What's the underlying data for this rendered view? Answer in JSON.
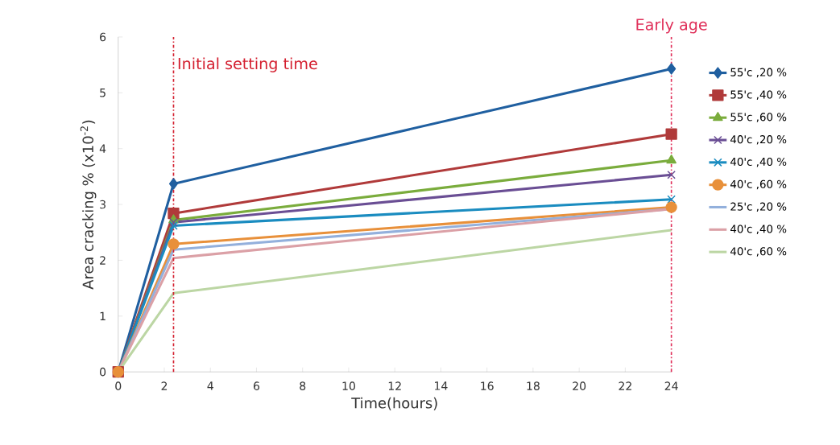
{
  "chart_data": {
    "type": "line",
    "xlabel": "Time(hours)",
    "ylabel": "Area cracking  % (x10$^{-2}$)",
    "xlim": [
      0,
      24
    ],
    "ylim": [
      0,
      6
    ],
    "xticks": [
      0,
      2,
      4,
      6,
      8,
      10,
      12,
      14,
      16,
      18,
      20,
      22,
      24
    ],
    "yticks": [
      0,
      1,
      2,
      3,
      4,
      5,
      6
    ],
    "x": [
      0,
      2.4,
      24
    ],
    "legend": "right",
    "series": [
      {
        "name": "55'c ,20 %",
        "color": "#1f5fa0",
        "marker": "diamond",
        "values": [
          0,
          3.37,
          5.43
        ]
      },
      {
        "name": "55'c ,40 %",
        "color": "#b03a3a",
        "marker": "square",
        "values": [
          0,
          2.84,
          4.26
        ]
      },
      {
        "name": "55'c ,60 %",
        "color": "#7aac3c",
        "marker": "triangle",
        "values": [
          0,
          2.72,
          3.79
        ]
      },
      {
        "name": "40'c ,20 %",
        "color": "#6a4e94",
        "marker": "cross",
        "values": [
          0,
          2.68,
          3.53
        ]
      },
      {
        "name": "40'c ,40 %",
        "color": "#1a8cc0",
        "marker": "cross",
        "values": [
          0,
          2.62,
          3.09
        ]
      },
      {
        "name": "40'c ,60 %",
        "color": "#e8903a",
        "marker": "circle",
        "values": [
          0,
          2.29,
          2.95
        ]
      },
      {
        "name": "25'c ,20 %",
        "color": "#93b0dc",
        "marker": "none",
        "values": [
          0,
          2.19,
          2.92
        ]
      },
      {
        "name": "40'c ,40 %",
        "color": "#dba0a6",
        "marker": "none",
        "values": [
          0,
          2.04,
          2.92
        ]
      },
      {
        "name": "40'c ,60 %",
        "color": "#bcd6a4",
        "marker": "none",
        "values": [
          0,
          1.41,
          2.54
        ]
      }
    ],
    "ref_lines": [
      {
        "axis": "x",
        "value": 2.4,
        "label": "Initial setting time",
        "color": "#d42030"
      },
      {
        "axis": "x",
        "value": 24,
        "label": "Early age",
        "color": "#e0305a"
      }
    ]
  }
}
